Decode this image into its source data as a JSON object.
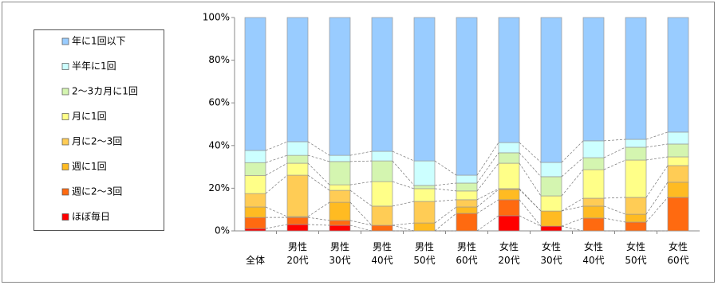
{
  "chart_data": {
    "type": "stacked-bar-100",
    "categories": [
      "全体",
      "男性\n20代",
      "男性\n30代",
      "男性\n40代",
      "男性\n50代",
      "男性\n60代",
      "女性\n20代",
      "女性\n30代",
      "女性\n40代",
      "女性\n50代",
      "女性\n60代"
    ],
    "series": [
      {
        "name": "ほぼ毎日",
        "color": "#ff0000",
        "values": [
          1.1,
          3.0,
          2.6,
          0,
          0,
          0,
          7.1,
          2.2,
          0,
          0,
          0
        ]
      },
      {
        "name": "週に2～3回",
        "color": "#ff6a10",
        "values": [
          5.2,
          3.3,
          2.3,
          2.6,
          0,
          8.2,
          7.5,
          0,
          6.0,
          4.1,
          15.7
        ]
      },
      {
        "name": "週に1回",
        "color": "#ffbb22",
        "values": [
          4.9,
          0.4,
          8.5,
          0,
          3.7,
          3.0,
          4.8,
          7.1,
          5.6,
          3.7,
          7.1
        ]
      },
      {
        "name": "月に2～3回",
        "color": "#ffcc55",
        "values": [
          6.3,
          19.4,
          5.6,
          9.0,
          10.1,
          3.4,
          0.4,
          0,
          3.7,
          7.9,
          7.8
        ]
      },
      {
        "name": "月に1回",
        "color": "#ffff88",
        "values": [
          8.5,
          5.6,
          2.6,
          11.5,
          6.0,
          4.1,
          11.9,
          7.1,
          13.4,
          17.5,
          4.1
        ]
      },
      {
        "name": "2～3カ月に1回",
        "color": "#d4f5b0",
        "values": [
          6.0,
          3.7,
          10.9,
          9.7,
          1.5,
          3.7,
          4.9,
          9.0,
          5.6,
          6.0,
          6.0
        ]
      },
      {
        "name": "半年に1回",
        "color": "#ccffff",
        "values": [
          5.7,
          6.4,
          2.9,
          4.5,
          11.5,
          3.7,
          4.8,
          6.7,
          7.9,
          3.7,
          5.6
        ]
      },
      {
        "name": "年に1回以下",
        "color": "#99ccff",
        "values": [
          62.3,
          58.2,
          64.6,
          62.7,
          67.2,
          73.9,
          58.6,
          67.9,
          57.8,
          57.1,
          53.7
        ]
      }
    ],
    "ylim": [
      0,
      100
    ],
    "yticks": [
      {
        "value": 0,
        "label": "0%"
      },
      {
        "value": 20,
        "label": "20%"
      },
      {
        "value": 40,
        "label": "40%"
      },
      {
        "value": 60,
        "label": "60%"
      },
      {
        "value": 80,
        "label": "80%"
      },
      {
        "value": 100,
        "label": "100%"
      }
    ],
    "legend": "left"
  }
}
